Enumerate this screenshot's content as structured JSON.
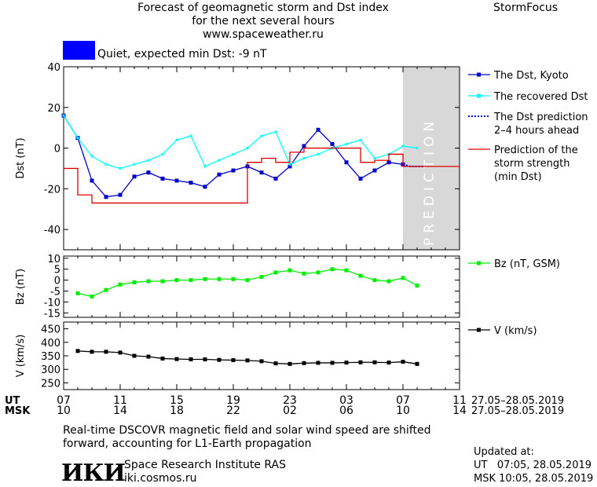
{
  "header": {
    "title_line1": "Forecast of geomagnetic storm and Dst index",
    "title_line2": "for the next several hours",
    "title_line3": "www.spaceweather.ru",
    "brand": "StormFocus",
    "status_text": "Quiet, expected min Dst: -9 nT",
    "status_color": "#0000ff"
  },
  "footer": {
    "note_line1": "Real-time DSCOVR magnetic field and solar wind speed are shifted",
    "note_line2": "forward, accounting for L1-Earth propagation",
    "institute": "Space Research Institute RAS",
    "website": "iki.cosmos.ru",
    "logo_text": "ИКИ",
    "updated_label": "Updated at:",
    "updated_ut": "UT   07:05, 28.05.2019",
    "updated_msk": "MSK 10:05, 28.05.2019"
  },
  "time_axis": {
    "ut_label": "UT",
    "msk_label": "MSK",
    "ut_ticks": [
      "07",
      "11",
      "15",
      "19",
      "23",
      "03",
      "07",
      "11"
    ],
    "msk_ticks": [
      "10",
      "14",
      "18",
      "22",
      "02",
      "06",
      "10",
      "14"
    ],
    "ut_range": "27.05–28.05.2019",
    "msk_range": "27.05–28.05.2019",
    "xlim": [
      0,
      28
    ],
    "prediction_start": 24,
    "prediction_label": "PREDICTION"
  },
  "chart_data": [
    {
      "type": "line",
      "ylabel": "Dst (nT)",
      "ylim": [
        -50,
        40
      ],
      "yticks": [
        40,
        20,
        0,
        -20,
        -40
      ],
      "series": [
        {
          "name": "The Dst, Kyoto",
          "color": "#0000cc",
          "marker": "square",
          "x": [
            0,
            1,
            2,
            3,
            4,
            5,
            6,
            7,
            8,
            9,
            10,
            11,
            12,
            13,
            14,
            15,
            16,
            17,
            18,
            19,
            20,
            21,
            22,
            23,
            24
          ],
          "y": [
            16,
            5,
            -16,
            -24,
            -23,
            -14,
            -12,
            -15,
            -16,
            -17,
            -19,
            -13,
            -11,
            -9,
            -12,
            -15,
            -9,
            1,
            9,
            2,
            -7,
            -15,
            -11,
            -7,
            -8
          ]
        },
        {
          "name": "The recovered Dst",
          "color": "#00ffff",
          "marker": "square-small",
          "x": [
            0,
            1,
            2,
            3,
            4,
            5,
            6,
            7,
            8,
            9,
            10,
            11,
            12,
            13,
            14,
            15,
            16,
            17,
            18,
            19,
            20,
            21,
            22,
            23,
            24,
            25
          ],
          "y": [
            16,
            5,
            -4,
            -8,
            -10,
            -8,
            -6,
            -3,
            4,
            6,
            -9,
            -6,
            -3,
            0,
            6,
            8,
            -8,
            -5,
            -3,
            0,
            2,
            4,
            -5,
            -3,
            1,
            0
          ]
        },
        {
          "name": "The Dst prediction\n2–4 hours ahead",
          "color": "#0000cc",
          "dash": true,
          "x": [
            24,
            24.5,
            25,
            25.5
          ],
          "y": [
            -8,
            -9,
            -9,
            -9
          ]
        },
        {
          "name": "Prediction of the\nstorm strength\n(min Dst)",
          "color": "#dd0000",
          "step": true,
          "x": [
            0,
            1,
            2,
            3,
            4,
            5,
            6,
            7,
            8,
            9,
            10,
            11,
            12,
            13,
            14,
            15,
            16,
            17,
            18,
            19,
            20,
            21,
            22,
            23,
            24,
            28
          ],
          "y": [
            -10,
            -23,
            -27,
            -27,
            -27,
            -27,
            -27,
            -27,
            -27,
            -27,
            -27,
            -27,
            -27,
            -7,
            -5,
            -7,
            -2,
            0,
            0,
            0,
            0,
            -7,
            -6,
            -3,
            -9,
            -9
          ]
        }
      ]
    },
    {
      "type": "line",
      "ylabel": "Bz (nT)",
      "ylim": [
        -17,
        11
      ],
      "yticks": [
        10,
        5,
        0,
        -5,
        -10,
        -15
      ],
      "series": [
        {
          "name": "Bz (nT, GSM)",
          "color": "#00ee00",
          "marker": "square",
          "x": [
            1,
            2,
            3,
            4,
            5,
            6,
            7,
            8,
            9,
            10,
            11,
            12,
            13,
            14,
            15,
            16,
            17,
            18,
            19,
            20,
            21,
            22,
            23,
            24,
            25
          ],
          "y": [
            -6,
            -7.5,
            -4.5,
            -2,
            -1,
            -0.5,
            -0.5,
            0,
            0,
            0.5,
            0.5,
            0.5,
            0,
            1.5,
            3.5,
            4.5,
            3,
            3.5,
            5,
            4.5,
            2,
            0,
            -0.5,
            1,
            -2.5
          ]
        }
      ]
    },
    {
      "type": "line",
      "ylabel": "V (km/s)",
      "ylim": [
        225,
        475
      ],
      "yticks": [
        450,
        400,
        350,
        300,
        250
      ],
      "series": [
        {
          "name": "V (km/s)",
          "color": "#000000",
          "marker": "square",
          "x": [
            1,
            2,
            3,
            4,
            5,
            6,
            7,
            8,
            9,
            10,
            11,
            12,
            13,
            14,
            15,
            16,
            17,
            18,
            19,
            20,
            21,
            22,
            23,
            24,
            25
          ],
          "y": [
            368,
            365,
            365,
            362,
            350,
            347,
            340,
            338,
            337,
            337,
            335,
            334,
            333,
            330,
            322,
            320,
            323,
            324,
            324,
            325,
            326,
            326,
            325,
            328,
            320
          ]
        }
      ]
    }
  ]
}
